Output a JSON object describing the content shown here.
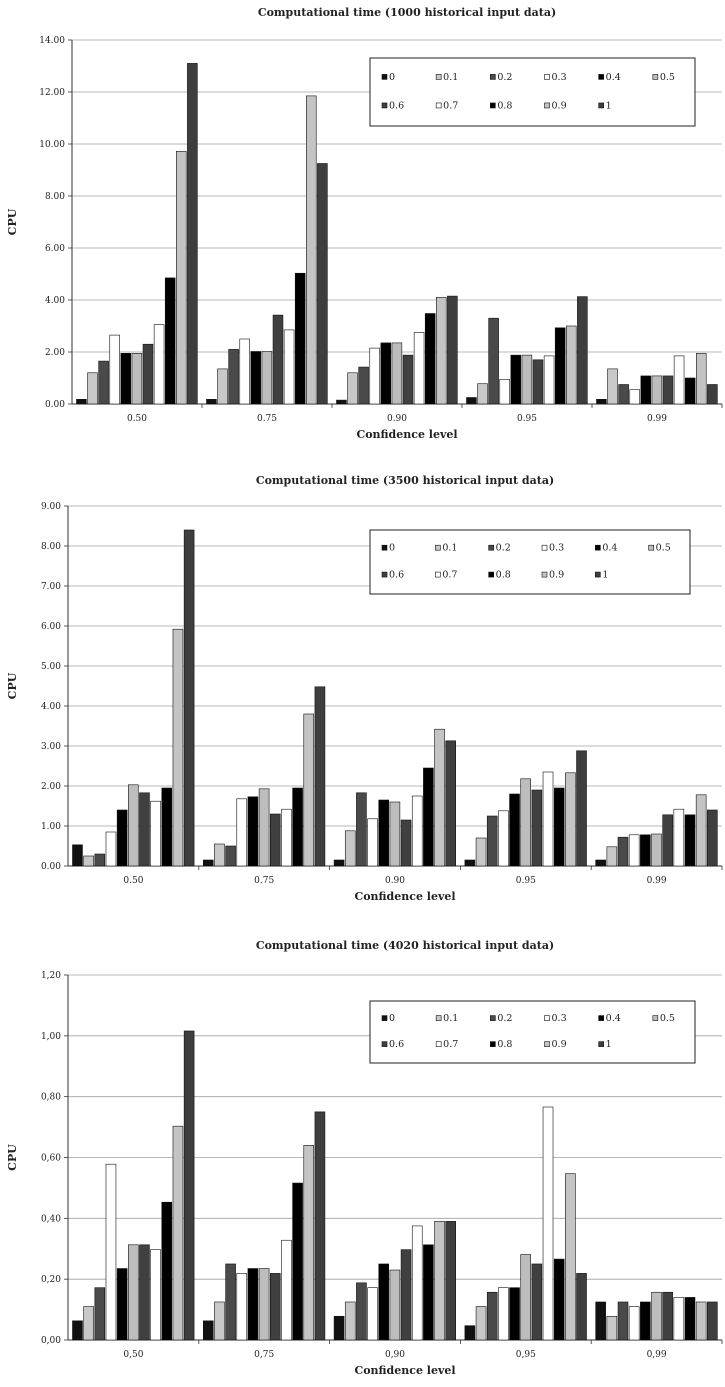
{
  "colors": {
    "series": [
      "#111111",
      "#c8c8c8",
      "#4a4a4a",
      "#ffffff",
      "#000000",
      "#bdbdbd",
      "#404040",
      "#ffffff",
      "#000000",
      "#c4c4c4",
      "#3e3e3e"
    ],
    "gridline": "#a0a0a0",
    "bar_stroke": "#111111"
  },
  "chart_data": [
    {
      "type": "bar",
      "title": "Computational time (1000 historical input data)",
      "xlabel": "Confidence level",
      "ylabel": "CPU",
      "categories": [
        "0.50",
        "0.75",
        "0.90",
        "0.95",
        "0.99"
      ],
      "ylim": [
        0,
        14
      ],
      "yticks": [
        "0.00",
        "2.00",
        "4.00",
        "6.00",
        "8.00",
        "10.00",
        "12.00",
        "14.00"
      ],
      "legend_position": "top-right",
      "grid": true,
      "series": [
        {
          "name": "0",
          "values": [
            0.18,
            0.18,
            0.15,
            0.25,
            0.18
          ]
        },
        {
          "name": "0.1",
          "values": [
            1.2,
            1.35,
            1.2,
            0.78,
            1.35
          ]
        },
        {
          "name": "0.2",
          "values": [
            1.65,
            2.1,
            1.42,
            3.3,
            0.75
          ]
        },
        {
          "name": "0.3",
          "values": [
            2.65,
            2.5,
            2.15,
            0.95,
            0.55
          ]
        },
        {
          "name": "0.4",
          "values": [
            1.95,
            2.02,
            2.35,
            1.88,
            1.08
          ]
        },
        {
          "name": "0.5",
          "values": [
            1.95,
            2.02,
            2.35,
            1.88,
            1.08
          ]
        },
        {
          "name": "0.6",
          "values": [
            2.3,
            3.42,
            1.88,
            1.7,
            1.08
          ]
        },
        {
          "name": "0.7",
          "values": [
            3.05,
            2.85,
            2.75,
            1.85,
            1.85
          ]
        },
        {
          "name": "0.8",
          "values": [
            4.85,
            5.03,
            3.48,
            2.93,
            1.0
          ]
        },
        {
          "name": "0.9",
          "values": [
            9.72,
            11.85,
            4.1,
            3.0,
            1.95
          ]
        },
        {
          "name": "1",
          "values": [
            13.1,
            9.25,
            4.15,
            4.13,
            0.75
          ]
        }
      ]
    },
    {
      "type": "bar",
      "title": "Computational time (3500 historical input data)",
      "xlabel": "Confidence level",
      "ylabel": "CPU",
      "categories": [
        "0.50",
        "0.75",
        "0.90",
        "0.95",
        "0.99"
      ],
      "ylim": [
        0,
        9
      ],
      "yticks": [
        "0.00",
        "1.00",
        "2.00",
        "3.00",
        "4.00",
        "5.00",
        "6.00",
        "7.00",
        "8.00",
        "9.00"
      ],
      "legend_position": "top-right",
      "grid": true,
      "series": [
        {
          "name": "0",
          "values": [
            0.53,
            0.15,
            0.15,
            0.15,
            0.15
          ]
        },
        {
          "name": "0.1",
          "values": [
            0.25,
            0.55,
            0.88,
            0.7,
            0.48
          ]
        },
        {
          "name": "0.2",
          "values": [
            0.3,
            0.5,
            1.83,
            1.25,
            0.72
          ]
        },
        {
          "name": "0.3",
          "values": [
            0.85,
            1.68,
            1.18,
            1.38,
            0.78
          ]
        },
        {
          "name": "0.4",
          "values": [
            1.4,
            1.73,
            1.65,
            1.8,
            0.78
          ]
        },
        {
          "name": "0.5",
          "values": [
            2.03,
            1.93,
            1.6,
            2.18,
            0.8
          ]
        },
        {
          "name": "0.6",
          "values": [
            1.83,
            1.3,
            1.15,
            1.9,
            1.28
          ]
        },
        {
          "name": "0.7",
          "values": [
            1.62,
            1.42,
            1.75,
            2.35,
            1.42
          ]
        },
        {
          "name": "0.8",
          "values": [
            1.95,
            1.95,
            2.45,
            1.95,
            1.28
          ]
        },
        {
          "name": "0.9",
          "values": [
            5.92,
            3.8,
            3.42,
            2.33,
            1.78
          ]
        },
        {
          "name": "1",
          "values": [
            8.4,
            4.48,
            3.13,
            2.88,
            1.4
          ]
        }
      ]
    },
    {
      "type": "bar",
      "title": "Computational time (4020 historical input data)",
      "xlabel": "Confidence level",
      "ylabel": "CPU",
      "categories": [
        "0,50",
        "0,75",
        "0,90",
        "0,95",
        "0,99"
      ],
      "ylim": [
        0,
        1.2
      ],
      "yticks": [
        "0,00",
        "0,20",
        "0,40",
        "0,60",
        "0,80",
        "1,00",
        "1,20"
      ],
      "legend_position": "top-right",
      "grid": true,
      "series": [
        {
          "name": "0",
          "values": [
            0.063,
            0.063,
            0.078,
            0.047,
            0.125
          ]
        },
        {
          "name": "0.1",
          "values": [
            0.11,
            0.125,
            0.125,
            0.11,
            0.078
          ]
        },
        {
          "name": "0.2",
          "values": [
            0.172,
            0.25,
            0.188,
            0.157,
            0.125
          ]
        },
        {
          "name": "0.3",
          "values": [
            0.578,
            0.219,
            0.172,
            0.172,
            0.11
          ]
        },
        {
          "name": "0.4",
          "values": [
            0.235,
            0.235,
            0.25,
            0.172,
            0.125
          ]
        },
        {
          "name": "0.5",
          "values": [
            0.313,
            0.235,
            0.23,
            0.281,
            0.157
          ]
        },
        {
          "name": "0.6",
          "values": [
            0.313,
            0.219,
            0.297,
            0.25,
            0.157
          ]
        },
        {
          "name": "0.7",
          "values": [
            0.297,
            0.328,
            0.375,
            0.766,
            0.14
          ]
        },
        {
          "name": "0.8",
          "values": [
            0.453,
            0.516,
            0.313,
            0.266,
            0.14
          ]
        },
        {
          "name": "0.9",
          "values": [
            0.703,
            0.64,
            0.39,
            0.547,
            0.125
          ]
        },
        {
          "name": "1",
          "values": [
            1.016,
            0.75,
            0.39,
            0.219,
            0.125
          ]
        }
      ]
    }
  ]
}
